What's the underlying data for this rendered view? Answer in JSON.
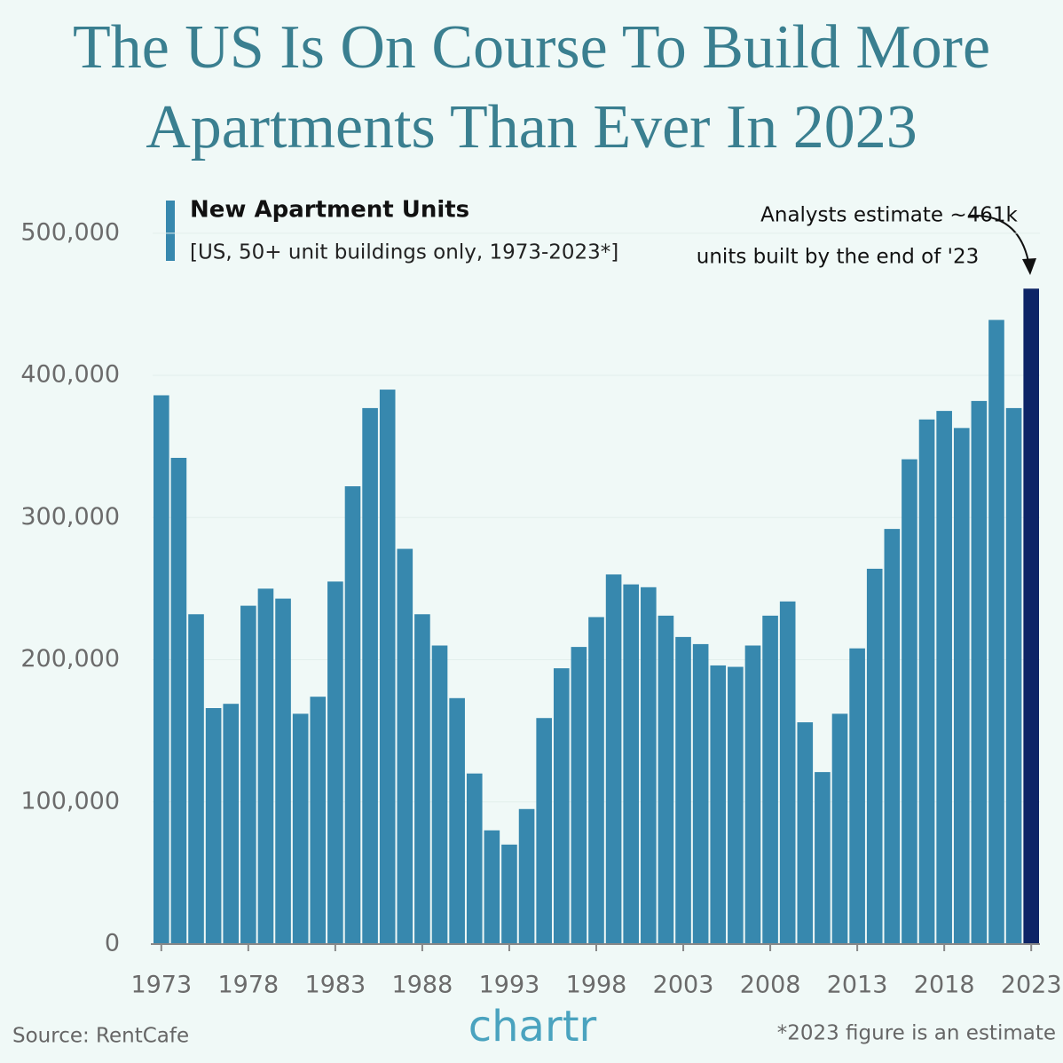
{
  "chart_data": {
    "type": "bar",
    "title_lines": [
      "The US Is On Course To Build More",
      "Apartments Than Ever In 2023"
    ],
    "legend_title": "New Apartment Units",
    "legend_subtitle": "[US, 50+ unit buildings only, 1973-2023*]",
    "annotation_lines": [
      "Analysts estimate ~461k",
      "units built by the end of '23"
    ],
    "source": "Source: RentCafe",
    "logo": "chartr",
    "footnote": "*2023 figure is an estimate",
    "x": [
      1973,
      1974,
      1975,
      1976,
      1977,
      1978,
      1979,
      1980,
      1981,
      1982,
      1983,
      1984,
      1985,
      1986,
      1987,
      1988,
      1989,
      1990,
      1991,
      1992,
      1993,
      1994,
      1995,
      1996,
      1997,
      1998,
      1999,
      2000,
      2001,
      2002,
      2003,
      2004,
      2005,
      2006,
      2007,
      2008,
      2009,
      2010,
      2011,
      2012,
      2013,
      2014,
      2015,
      2016,
      2017,
      2018,
      2019,
      2020,
      2021,
      2022,
      2023
    ],
    "values": [
      386000,
      342000,
      232000,
      166000,
      169000,
      238000,
      250000,
      243000,
      162000,
      174000,
      255000,
      322000,
      377000,
      390000,
      278000,
      232000,
      210000,
      173000,
      120000,
      80000,
      70000,
      95000,
      159000,
      194000,
      209000,
      230000,
      260000,
      253000,
      251000,
      231000,
      216000,
      211000,
      196000,
      195000,
      210000,
      231000,
      241000,
      156000,
      121000,
      162000,
      208000,
      264000,
      292000,
      341000,
      369000,
      375000,
      363000,
      382000,
      439000,
      377000,
      461000
    ],
    "color": "#3788ae",
    "highlight_x": 2023,
    "highlight_color": "#0d2466",
    "xlim": [
      1972.5,
      2023.5
    ],
    "xticks": [
      1973,
      1978,
      1983,
      1988,
      1993,
      1998,
      2003,
      2008,
      2013,
      2018,
      2023
    ],
    "ylim": [
      0,
      525000
    ],
    "yticks": [
      0,
      {
        "value": 100000,
        "label": "100,000"
      },
      {
        "value": 200000,
        "label": "200,000"
      },
      {
        "value": 300000,
        "label": "300,000"
      },
      {
        "value": 400000,
        "label": "400,000"
      },
      {
        "value": 500000,
        "label": "500,000"
      }
    ],
    "grid": true
  }
}
